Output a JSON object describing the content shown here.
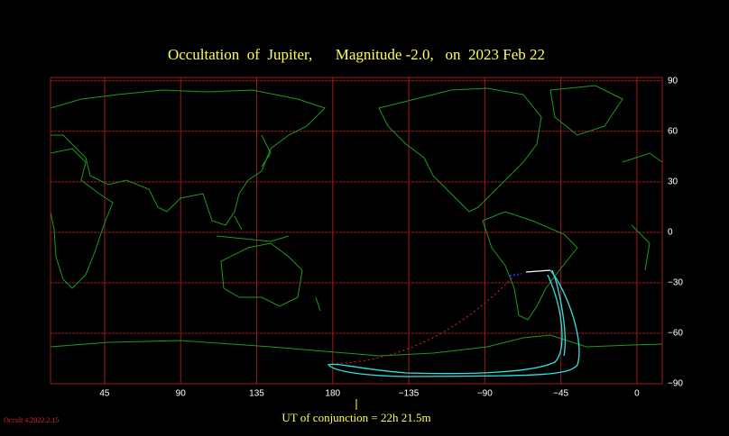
{
  "chart_data": {
    "type": "map",
    "title": "Occultation  of  Jupiter,      Magnitude -2.0,   on  2023 Feb 22",
    "xlim": [
      13,
      375
    ],
    "ylim": [
      -90,
      92
    ],
    "xticks": [
      45,
      90,
      135,
      180,
      {
        "value": 225,
        "label": "−135"
      },
      {
        "value": 270,
        "label": "−90"
      },
      {
        "value": 315,
        "label": "−45"
      },
      {
        "value": 360,
        "label": "0"
      }
    ],
    "yticks": [
      90,
      60,
      30,
      0,
      {
        "value": -30,
        "label": "−30"
      },
      {
        "value": -60,
        "label": "−60"
      },
      {
        "value": -90,
        "label": "−90"
      }
    ],
    "grid": true,
    "grid_color": "#a01818",
    "footer": "UT of conjunction = 22h 21.5m",
    "version": "Occult 4.2022.2.15"
  }
}
